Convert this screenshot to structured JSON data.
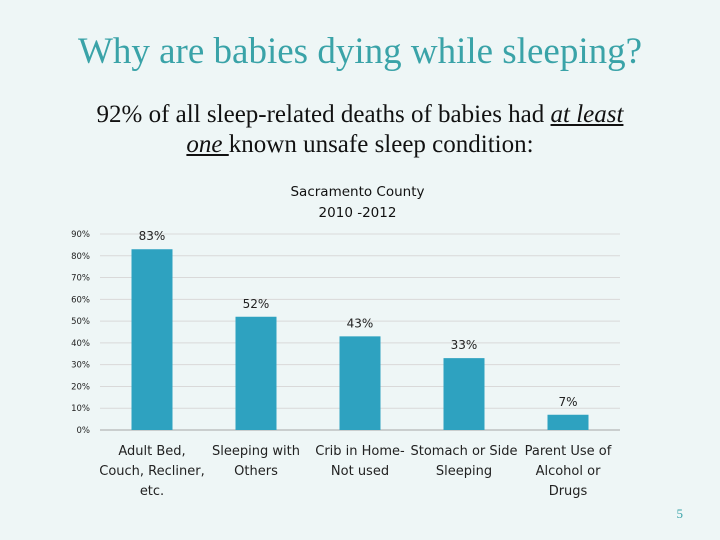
{
  "slide": {
    "title": "Why are babies dying while sleeping?",
    "subtitle_part1": "92% of all sleep-related deaths of babies had ",
    "subtitle_underlined1": "at least",
    "subtitle_underlined2": "one ",
    "subtitle_part2": "known unsafe sleep condition:",
    "page_number": "5"
  },
  "chart_data": {
    "type": "bar",
    "title_line1": "Sacramento County",
    "title_line2": "2010 -2012",
    "categories": [
      [
        "Adult Bed,",
        "Couch, Recliner,",
        "etc."
      ],
      [
        "Sleeping with",
        "Others"
      ],
      [
        "Crib in Home-",
        "Not used"
      ],
      [
        "Stomach or Side",
        "Sleeping"
      ],
      [
        "Parent Use of",
        "Alcohol or",
        "Drugs"
      ]
    ],
    "values": [
      83,
      52,
      43,
      33,
      7
    ],
    "data_labels": [
      "83%",
      "52%",
      "43%",
      "33%",
      "7%"
    ],
    "yticks": [
      0,
      10,
      20,
      30,
      40,
      50,
      60,
      70,
      80,
      90
    ],
    "ytick_labels": [
      "0%",
      "10%",
      "20%",
      "30%",
      "40%",
      "50%",
      "60%",
      "70%",
      "80%",
      "90%"
    ],
    "ylim": [
      0,
      90
    ],
    "grid": true,
    "bar_color": "#2ea2c0",
    "grid_color": "#d9d9d9"
  }
}
